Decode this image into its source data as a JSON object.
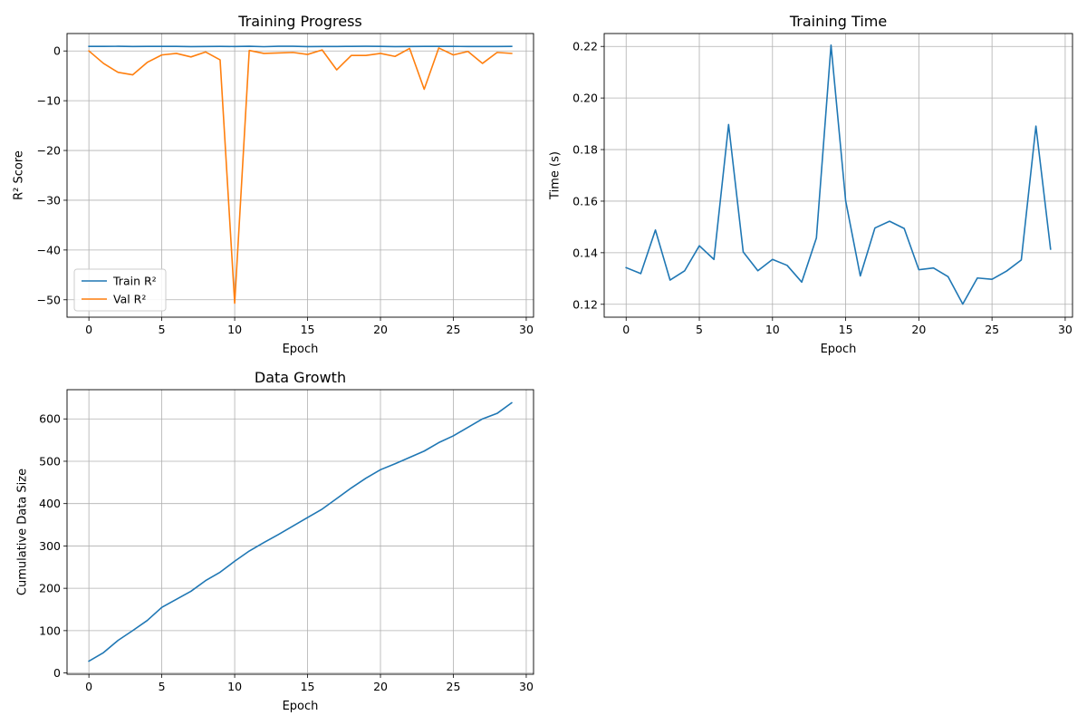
{
  "chart_data": [
    {
      "type": "line",
      "title": "Training Progress",
      "xlabel": "Epoch",
      "ylabel": "R² Score",
      "xlim": [
        -1.5,
        30.5
      ],
      "ylim": [
        -53.5,
        3.5
      ],
      "xticks": [
        0,
        5,
        10,
        15,
        20,
        25,
        30
      ],
      "yticks": [
        0,
        -10,
        -20,
        -30,
        -40,
        -50
      ],
      "ytick_labels": [
        "0",
        "−10",
        "−20",
        "−30",
        "−40",
        "−50"
      ],
      "grid": true,
      "legend": "lower-left",
      "x": [
        0,
        1,
        2,
        3,
        4,
        5,
        6,
        7,
        8,
        9,
        10,
        11,
        12,
        13,
        14,
        15,
        16,
        17,
        18,
        19,
        20,
        21,
        22,
        23,
        24,
        25,
        26,
        27,
        28,
        29
      ],
      "series": [
        {
          "name": "Train R²",
          "color": "#1f77b4",
          "values": [
            0.92,
            0.92,
            0.93,
            0.9,
            0.92,
            0.92,
            0.92,
            0.88,
            0.89,
            0.91,
            0.9,
            0.93,
            0.86,
            0.94,
            0.93,
            0.88,
            0.89,
            0.9,
            0.92,
            0.94,
            0.92,
            0.88,
            0.9,
            0.91,
            0.91,
            0.91,
            0.9,
            0.89,
            0.9,
            0.91
          ]
        },
        {
          "name": "Val R²",
          "color": "#ff7f0e",
          "values": [
            0.0,
            -2.5,
            -4.3,
            -4.8,
            -2.3,
            -0.8,
            -0.5,
            -1.2,
            -0.2,
            -1.8,
            -50.7,
            0.1,
            -0.5,
            -0.4,
            -0.3,
            -0.7,
            0.2,
            -3.8,
            -0.9,
            -0.9,
            -0.5,
            -1.1,
            0.5,
            -7.7,
            0.6,
            -0.8,
            -0.1,
            -2.5,
            -0.3,
            -0.5
          ]
        }
      ]
    },
    {
      "type": "line",
      "title": "Training Time",
      "xlabel": "Epoch",
      "ylabel": "Time (s)",
      "xlim": [
        -1.5,
        30.5
      ],
      "ylim": [
        0.115,
        0.225
      ],
      "xticks": [
        0,
        5,
        10,
        15,
        20,
        25,
        30
      ],
      "yticks": [
        0.12,
        0.14,
        0.16,
        0.18,
        0.2,
        0.22
      ],
      "ytick_labels": [
        "0.12",
        "0.14",
        "0.16",
        "0.18",
        "0.20",
        "0.22"
      ],
      "grid": true,
      "x": [
        0,
        1,
        2,
        3,
        4,
        5,
        6,
        7,
        8,
        9,
        10,
        11,
        12,
        13,
        14,
        15,
        16,
        17,
        18,
        19,
        20,
        21,
        22,
        23,
        24,
        25,
        26,
        27,
        28,
        29
      ],
      "series": [
        {
          "color": "#1f77b4",
          "values": [
            0.1342,
            0.1319,
            0.1488,
            0.1294,
            0.133,
            0.1427,
            0.1374,
            0.1897,
            0.1403,
            0.133,
            0.1374,
            0.1351,
            0.1286,
            0.1457,
            0.2205,
            0.1601,
            0.131,
            0.1496,
            0.1522,
            0.1494,
            0.1334,
            0.1341,
            0.1307,
            0.1201,
            0.1302,
            0.1297,
            0.1329,
            0.1372,
            0.1891,
            0.1414
          ]
        }
      ]
    },
    {
      "type": "line",
      "title": "Data Growth",
      "xlabel": "Epoch",
      "ylabel": "Cumulative Data Size",
      "xlim": [
        -1.5,
        30.5
      ],
      "ylim": [
        -3,
        669
      ],
      "xticks": [
        0,
        5,
        10,
        15,
        20,
        25,
        30
      ],
      "yticks": [
        0,
        100,
        200,
        300,
        400,
        500,
        600
      ],
      "ytick_labels": [
        "0",
        "100",
        "200",
        "300",
        "400",
        "500",
        "600"
      ],
      "grid": true,
      "x": [
        0,
        1,
        2,
        3,
        4,
        5,
        6,
        7,
        8,
        9,
        10,
        11,
        12,
        13,
        14,
        15,
        16,
        17,
        18,
        19,
        20,
        21,
        22,
        23,
        24,
        25,
        26,
        27,
        28,
        29
      ],
      "series": [
        {
          "color": "#1f77b4",
          "values": [
            28,
            48,
            77,
            100,
            124,
            155,
            174,
            193,
            218,
            238,
            264,
            288,
            308,
            327,
            347,
            367,
            387,
            412,
            437,
            460,
            480,
            494,
            509,
            524,
            544,
            560,
            580,
            600,
            613,
            638
          ]
        }
      ]
    }
  ]
}
